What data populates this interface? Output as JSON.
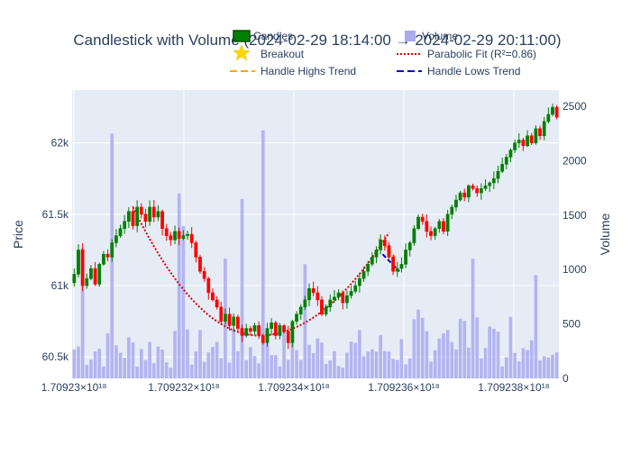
{
  "chart_data": {
    "type": "candlestick",
    "title": "Candlestick with Volume (2024-02-29 18:14:00 → 2024-02-29 20:11:00)",
    "xlabel": "",
    "ylabel": "Price",
    "y2label": "Volume",
    "x_ticks": [
      "1.70923×10¹⁸",
      "1.709232×10¹⁸",
      "1.709234×10¹⁸",
      "1.709236×10¹⁸",
      "1.709238×10¹⁸"
    ],
    "y_ticks": [
      {
        "value": 60500,
        "label": "60.5k"
      },
      {
        "value": 61000,
        "label": "61k"
      },
      {
        "value": 61500,
        "label": "61.5k"
      },
      {
        "value": 62000,
        "label": "62k"
      }
    ],
    "y2_ticks": [
      {
        "value": 0,
        "label": "0"
      },
      {
        "value": 500,
        "label": "500"
      },
      {
        "value": 1000,
        "label": "1000"
      },
      {
        "value": 1500,
        "label": "1500"
      },
      {
        "value": 2000,
        "label": "2000"
      },
      {
        "value": 2500,
        "label": "2500"
      }
    ],
    "ylim": [
      60350,
      62370
    ],
    "y2lim": [
      0,
      2650
    ],
    "grid": true,
    "legend_position": "top",
    "colors": {
      "up": "#008000",
      "down": "#ff0000",
      "volume": "#aaaaee",
      "breakout": "#ffd700",
      "parabolic": "#e00000",
      "handle_highs": "#ffa500",
      "handle_lows": "#0000cc",
      "plot_bg": "#e5ecf6"
    },
    "legend": [
      {
        "name": "Candles",
        "kind": "candle"
      },
      {
        "name": "Volume",
        "kind": "bar"
      },
      {
        "name": "Breakout",
        "kind": "star"
      },
      {
        "name": "Parabolic Fit (R²=0.86)",
        "kind": "dotted"
      },
      {
        "name": "Handle Highs Trend",
        "kind": "dash-orange"
      },
      {
        "name": "Handle Lows Trend",
        "kind": "dash-blue"
      }
    ],
    "close": [
      61080,
      61250,
      61000,
      61050,
      61120,
      61010,
      61150,
      61220,
      61200,
      61300,
      61350,
      61400,
      61450,
      61520,
      61420,
      61550,
      61500,
      61450,
      61550,
      61480,
      61520,
      61400,
      61350,
      61320,
      61380,
      61330,
      61350,
      61360,
      61300,
      61200,
      61100,
      61050,
      60950,
      60900,
      60850,
      60750,
      60800,
      60720,
      60780,
      60700,
      60650,
      60700,
      60680,
      60720,
      60650,
      60600,
      60700,
      60740,
      60650,
      60720,
      60680,
      60600,
      60750,
      60800,
      60850,
      60900,
      60980,
      60950,
      60900,
      60800,
      60850,
      60900,
      60920,
      60950,
      60880,
      60930,
      60960,
      61000,
      61050,
      61100,
      61150,
      61200,
      61250,
      61320,
      61280,
      61200,
      61100,
      61120,
      61150,
      61250,
      61300,
      61400,
      61480,
      61450,
      61380,
      61350,
      61400,
      61450,
      61380,
      61500,
      61550,
      61600,
      61650,
      61620,
      61700,
      61680,
      61650,
      61680,
      61700,
      61720,
      61750,
      61800,
      61850,
      61900,
      61950,
      62000,
      62020,
      61980,
      62050,
      62000,
      62100,
      62050,
      62150,
      62200,
      62250,
      62180
    ]
  }
}
